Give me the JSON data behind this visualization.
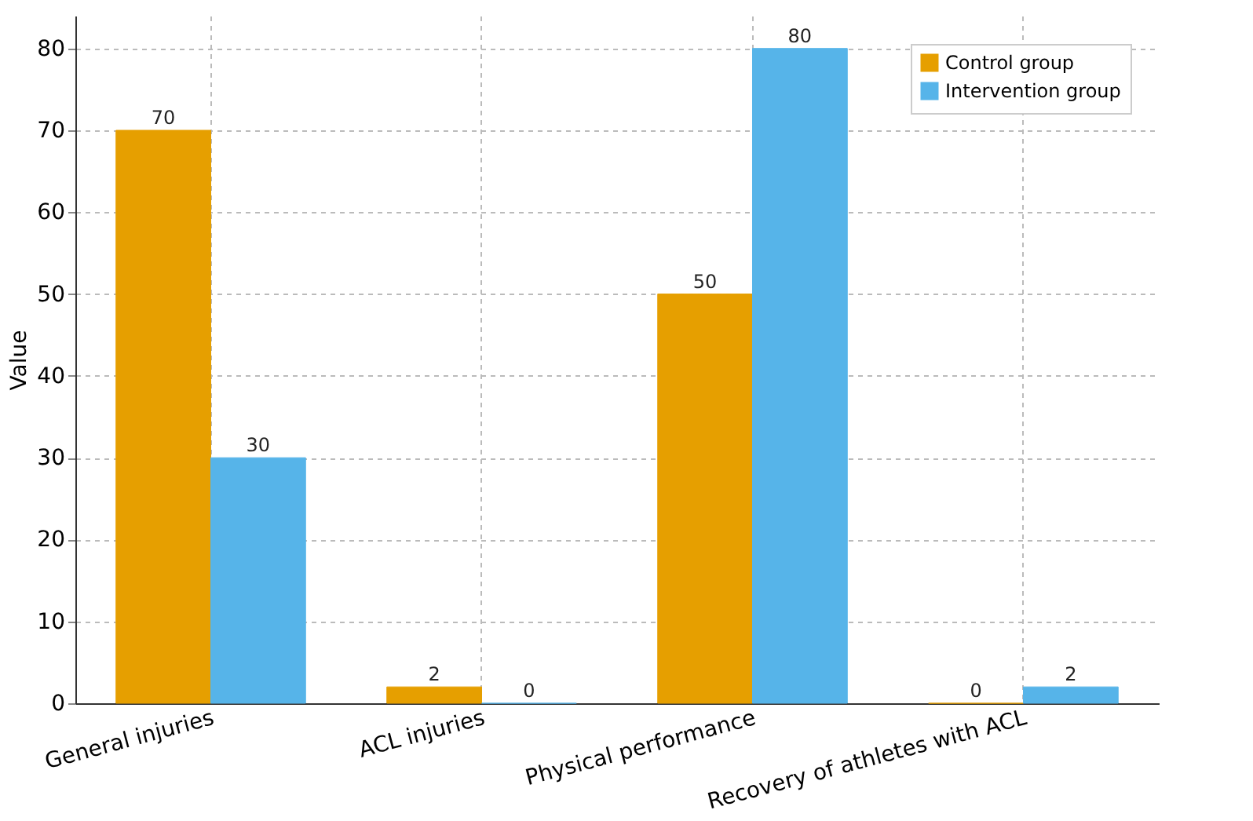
{
  "chart_data": {
    "type": "bar",
    "ylabel": "Value",
    "categories": [
      "General injuries",
      "ACL injuries",
      "Physical performance",
      "Recovery of athletes with ACL"
    ],
    "series": [
      {
        "name": "Control group",
        "color": "#e69f00",
        "values": [
          70,
          2,
          50,
          0
        ]
      },
      {
        "name": "Intervention group",
        "color": "#56b4e9",
        "values": [
          30,
          0,
          80,
          2
        ]
      }
    ],
    "ylim": [
      0,
      84
    ],
    "yticks": [
      0,
      10,
      20,
      30,
      40,
      50,
      60,
      70,
      80
    ],
    "grid": true,
    "legend": "top right",
    "data_labels": true
  }
}
